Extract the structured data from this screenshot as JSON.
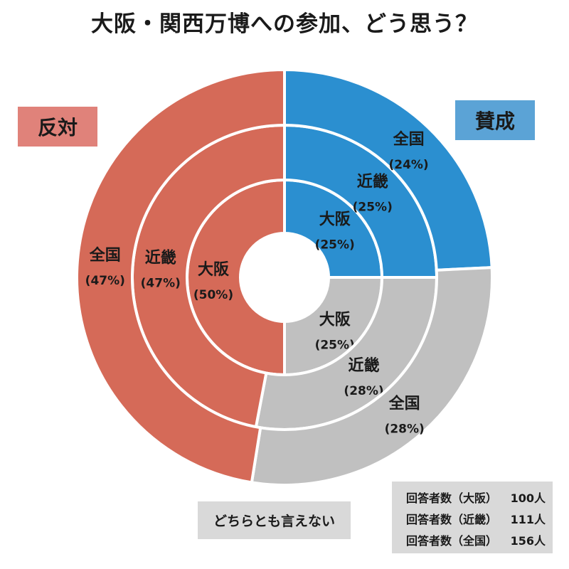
{
  "title": "大阪・関西万博への参加、どう思う？",
  "legend": {
    "support": {
      "label": "賛成",
      "color": "#5ba3d6"
    },
    "oppose": {
      "label": "反対",
      "color": "#e0827a"
    },
    "neutral": {
      "label": "どちらとも言えない",
      "color": "#d9d9d9"
    }
  },
  "respondents": [
    {
      "label": "回答者数（大阪）",
      "count": "100人"
    },
    {
      "label": "回答者数（近畿）",
      "count": "111人"
    },
    {
      "label": "回答者数（全国）",
      "count": "156人"
    }
  ],
  "chart_data": {
    "type": "pie",
    "title": "大阪・関西万博への参加、どう思う？",
    "categories": [
      "賛成",
      "どちらとも言えない",
      "反対"
    ],
    "category_colors": [
      "#2b8fd0",
      "#c0c0c0",
      "#d56a58"
    ],
    "rings": [
      {
        "name": "大阪",
        "values": [
          25,
          25,
          50
        ],
        "value_labels": [
          "(25%)",
          "(25%)",
          "(50%)"
        ]
      },
      {
        "name": "近畿",
        "values": [
          25,
          28,
          47
        ],
        "value_labels": [
          "(25%)",
          "(28%)",
          "(47%)"
        ]
      },
      {
        "name": "全国",
        "values": [
          24,
          28,
          47
        ],
        "value_labels": [
          "(24%)",
          "(28%)",
          "(47%)"
        ]
      }
    ],
    "legend_position": "corners"
  }
}
